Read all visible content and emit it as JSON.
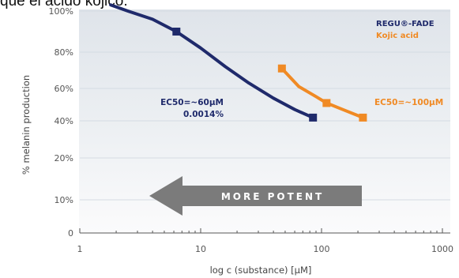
{
  "caption": "que el ácido kójico.",
  "chart_data": {
    "type": "line",
    "xlabel": "log c (substance) [µM]",
    "ylabel": "% melanin production",
    "xscale": "log",
    "xlim": [
      1,
      1000
    ],
    "ylim": [
      0,
      100
    ],
    "x_ticks": [
      {
        "value": 1,
        "label": "1"
      },
      {
        "value": 10,
        "label": "10"
      },
      {
        "value": 100,
        "label": "100"
      },
      {
        "value": 1000,
        "label": "1000"
      }
    ],
    "y_ticks": [
      {
        "value": 0,
        "label": "0"
      },
      {
        "value": 10,
        "label": "10%"
      },
      {
        "value": 20,
        "label": "20%"
      },
      {
        "value": 40,
        "label": "40%"
      },
      {
        "value": 60,
        "label": "60%"
      },
      {
        "value": 80,
        "label": "80%"
      },
      {
        "value": 100,
        "label": "100%"
      }
    ],
    "series": [
      {
        "name": "REGU®-FADE",
        "color": "#1f2a6b",
        "curve": [
          [
            1.8,
            103
          ],
          [
            2.5,
            100
          ],
          [
            4,
            96
          ],
          [
            6.3,
            90
          ],
          [
            10,
            82
          ],
          [
            16,
            72
          ],
          [
            25,
            63
          ],
          [
            40,
            54
          ],
          [
            60,
            47
          ],
          [
            85,
            42
          ]
        ],
        "markers": [
          [
            6.3,
            90
          ],
          [
            85,
            42
          ]
        ]
      },
      {
        "name": "Kojic acid",
        "color": "#f08a24",
        "curve": [
          [
            47,
            71
          ],
          [
            65,
            61
          ],
          [
            90,
            55
          ],
          [
            110,
            51
          ],
          [
            150,
            47
          ],
          [
            220,
            42
          ]
        ],
        "markers": [
          [
            47,
            71
          ],
          [
            110,
            51
          ],
          [
            220,
            42
          ]
        ]
      }
    ],
    "annotations": [
      {
        "lines": [
          "EC50=~60µM",
          "0.0014%"
        ],
        "color": "#1f2a6b"
      },
      {
        "lines": [
          "EC50=~100µM"
        ],
        "color": "#f08a24"
      }
    ],
    "arrow_label": "MORE POTENT",
    "legend_position": "top-right"
  },
  "colors": {
    "arrow": "#7b7b7b",
    "gridline": "#d5dbe3",
    "axis": "#555555"
  }
}
